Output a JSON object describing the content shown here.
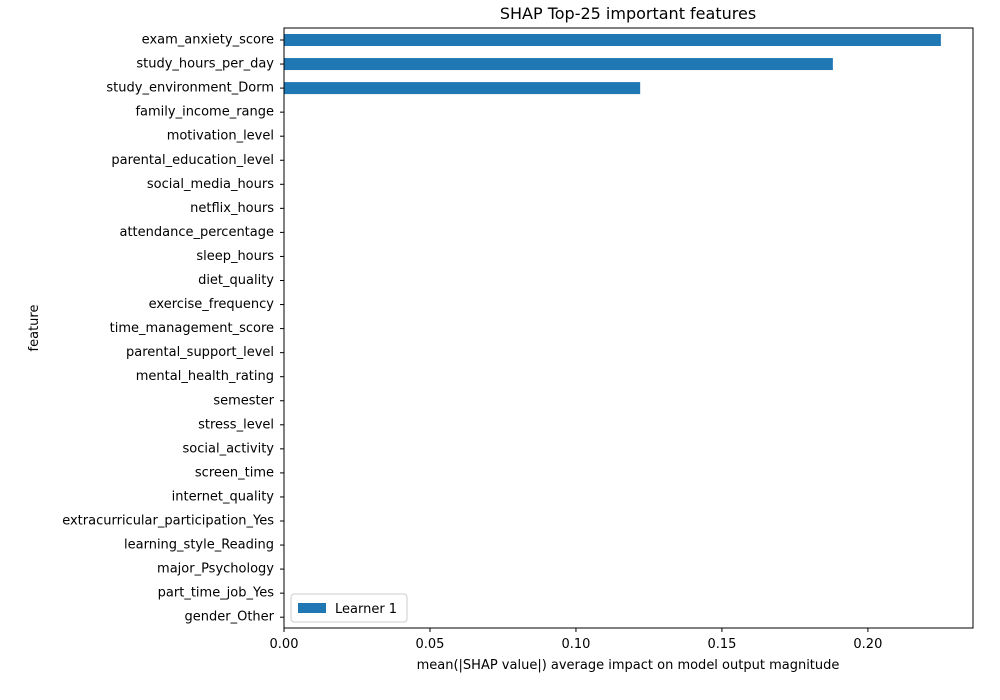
{
  "chart_data": {
    "type": "bar",
    "orientation": "horizontal",
    "title": "SHAP Top-25 important features",
    "xlabel": "mean(|SHAP value|) average impact on model output magnitude",
    "ylabel": "feature",
    "xlim": [
      0,
      0.236
    ],
    "x_ticks": [
      "0.00",
      "0.05",
      "0.10",
      "0.15",
      "0.20"
    ],
    "x_tick_values": [
      0,
      0.05,
      0.1,
      0.15,
      0.2
    ],
    "grid": false,
    "legend_placement": "lower-left",
    "series": [
      {
        "name": "Learner 1",
        "color": "#1f77b4",
        "values": [
          0.225,
          0.188,
          0.122,
          0,
          0,
          0,
          0,
          0,
          0,
          0,
          0,
          0,
          0,
          0,
          0,
          0,
          0,
          0,
          0,
          0,
          0,
          0,
          0,
          0,
          0
        ]
      }
    ],
    "categories": [
      "exam_anxiety_score",
      "study_hours_per_day",
      "study_environment_Dorm",
      "family_income_range",
      "motivation_level",
      "parental_education_level",
      "social_media_hours",
      "netflix_hours",
      "attendance_percentage",
      "sleep_hours",
      "diet_quality",
      "exercise_frequency",
      "time_management_score",
      "parental_support_level",
      "mental_health_rating",
      "semester",
      "stress_level",
      "social_activity",
      "screen_time",
      "internet_quality",
      "extracurricular_participation_Yes",
      "learning_style_Reading",
      "major_Psychology",
      "part_time_job_Yes",
      "gender_Other"
    ]
  }
}
